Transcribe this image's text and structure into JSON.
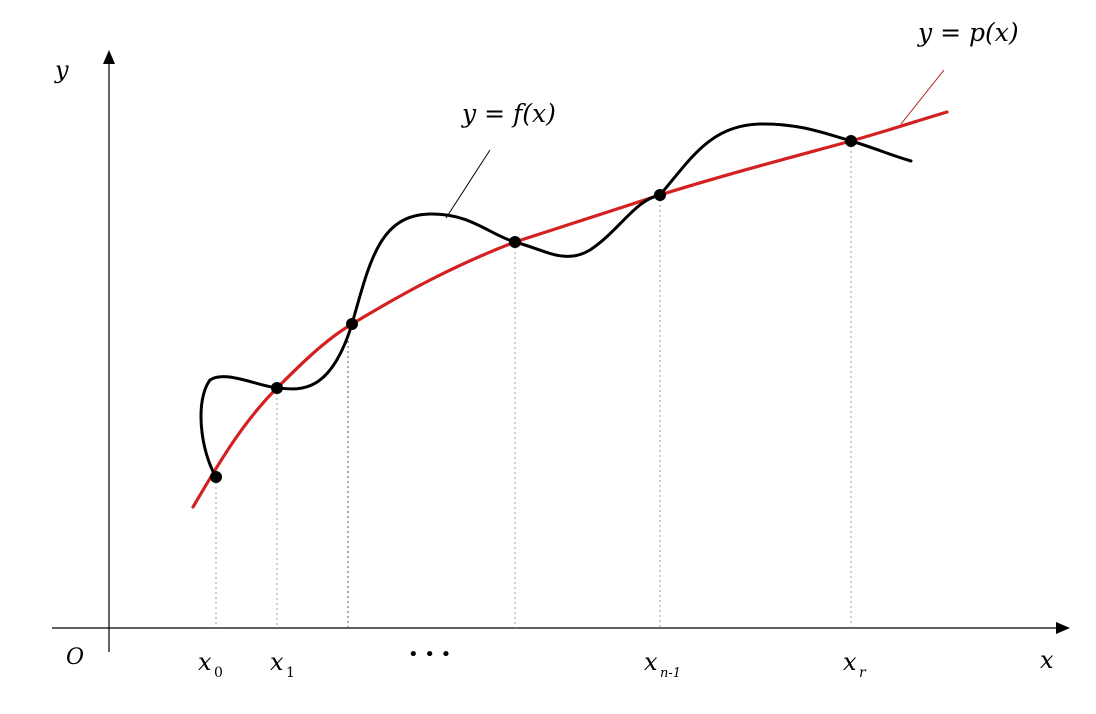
{
  "axes": {
    "origin_label": "O",
    "x_label": "x",
    "y_label": "y"
  },
  "curves": {
    "f": {
      "label": "y = f(x)",
      "color": "#000000"
    },
    "p": {
      "label": "y = p(x)",
      "color": "#d42020"
    }
  },
  "nodes": {
    "x0": {
      "base": "x",
      "sub": "0"
    },
    "x1": {
      "base": "x",
      "sub": "1"
    },
    "ellipsis": "• • •",
    "xn1": {
      "base": "x",
      "sub": "n-1"
    },
    "xn": {
      "base": "x",
      "sub": "r"
    }
  }
}
